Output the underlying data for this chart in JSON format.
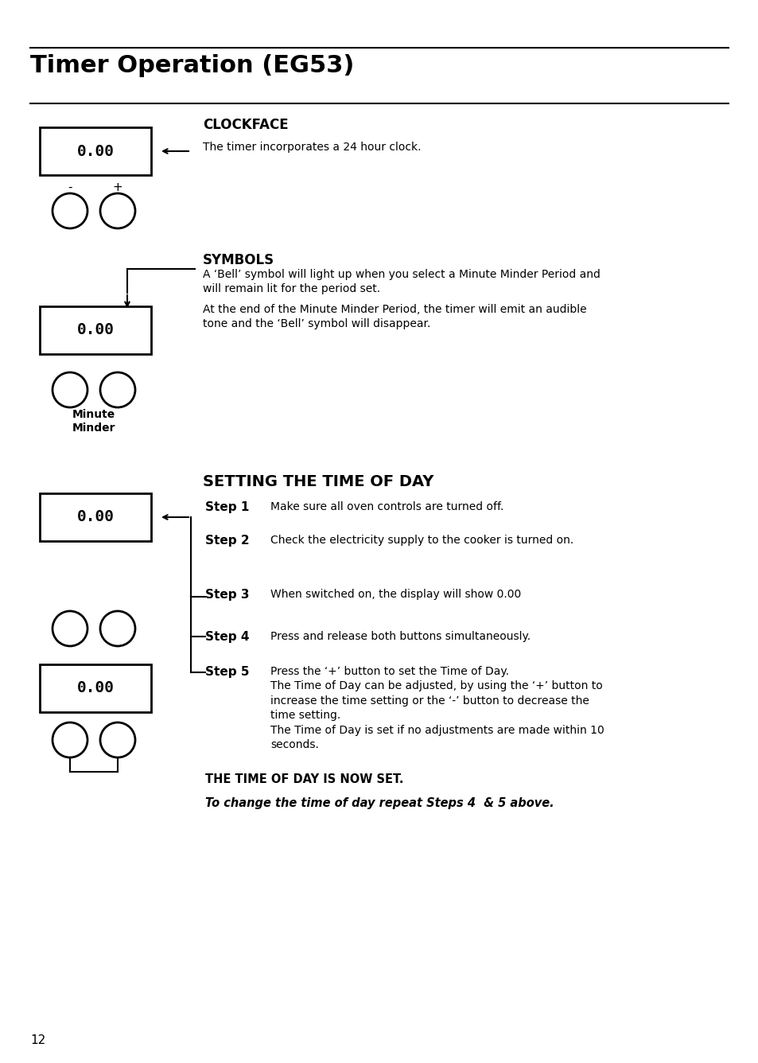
{
  "title": "Timer Operation (EG53)",
  "bg_color": "#ffffff",
  "page_number": "12",
  "display_text": "0.00",
  "clockface_heading": "CLOCKFACE",
  "clockface_body": "The timer incorporates a 24 hour clock.",
  "symbols_heading": "SYMBOLS",
  "symbols_body1": "A ‘Bell’ symbol will light up when you select a Minute Minder Period and",
  "symbols_body2": "will remain lit for the period set.",
  "symbols_body3": "At the end of the Minute Minder Period, the timer will emit an audible",
  "symbols_body4": "tone and the ‘Bell’ symbol will disappear.",
  "setting_heading": "SETTING THE TIME OF DAY",
  "step1_label": "Step 1",
  "step1_text": "Make sure all oven controls are turned off.",
  "step2_label": "Step 2",
  "step2_text": "Check the electricity supply to the cooker is turned on.",
  "step3_label": "Step 3",
  "step3_text": "When switched on, the display will show 0.00",
  "step4_label": "Step 4",
  "step4_text": "Press and release both buttons simultaneously.",
  "step5_label": "Step 5",
  "step5_text": "Press the ‘+’ button to set the Time of Day.\nThe Time of Day can be adjusted, by using the ‘+’ button to\nincrease the time setting or the ‘-’ button to decrease the\ntime setting.\nThe Time of Day is set if no adjustments are made within 10\nseconds.",
  "footer1": "THE TIME OF DAY IS NOW SET.",
  "footer2": "To change the time of day repeat Steps 4  & 5 above.",
  "minus_label": "-",
  "plus_label": "+",
  "minute_minder_label": "Minute\nMinder"
}
